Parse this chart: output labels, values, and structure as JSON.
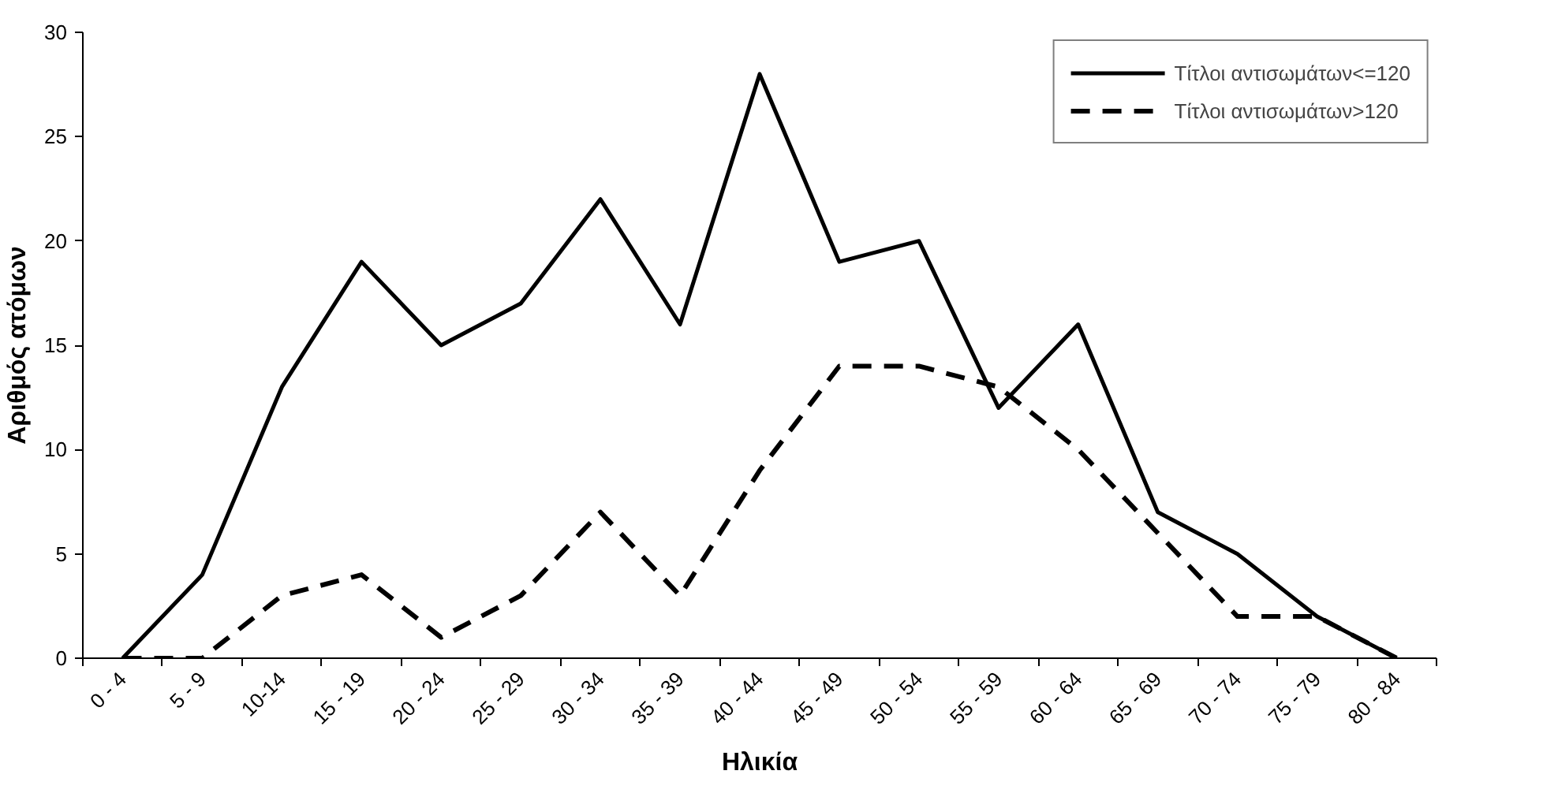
{
  "chart_data": {
    "type": "line",
    "xlabel": "Ηλικία",
    "ylabel": "Αριθμός ατόμων",
    "categories": [
      "0 - 4",
      "5 - 9",
      "10-14",
      "15 - 19",
      "20 - 24",
      "25 - 29",
      "30 - 34",
      "35 - 39",
      "40 - 44",
      "45 - 49",
      "50 - 54",
      "55 - 59",
      "60 - 64",
      "65 - 69",
      "70 - 74",
      "75 - 79",
      "80 - 84"
    ],
    "series": [
      {
        "name": "Τίτλοι αντισωμάτων<=120",
        "color": "#000000",
        "line_style": "solid",
        "values": [
          0,
          4,
          13,
          19,
          15,
          17,
          22,
          16,
          28,
          19,
          20,
          12,
          16,
          7,
          5,
          2,
          0
        ]
      },
      {
        "name": "Τίτλοι αντισωμάτων>120",
        "color": "#000000",
        "line_style": "dashed",
        "values": [
          0,
          0,
          3,
          4,
          1,
          3,
          7,
          3,
          9,
          14,
          14,
          13,
          10,
          6,
          2,
          2,
          0
        ]
      }
    ],
    "ylim": [
      0,
      30
    ],
    "yticks": [
      0,
      5,
      10,
      15,
      20,
      25,
      30
    ],
    "grid": false,
    "legend": "top right",
    "marker": "none"
  }
}
